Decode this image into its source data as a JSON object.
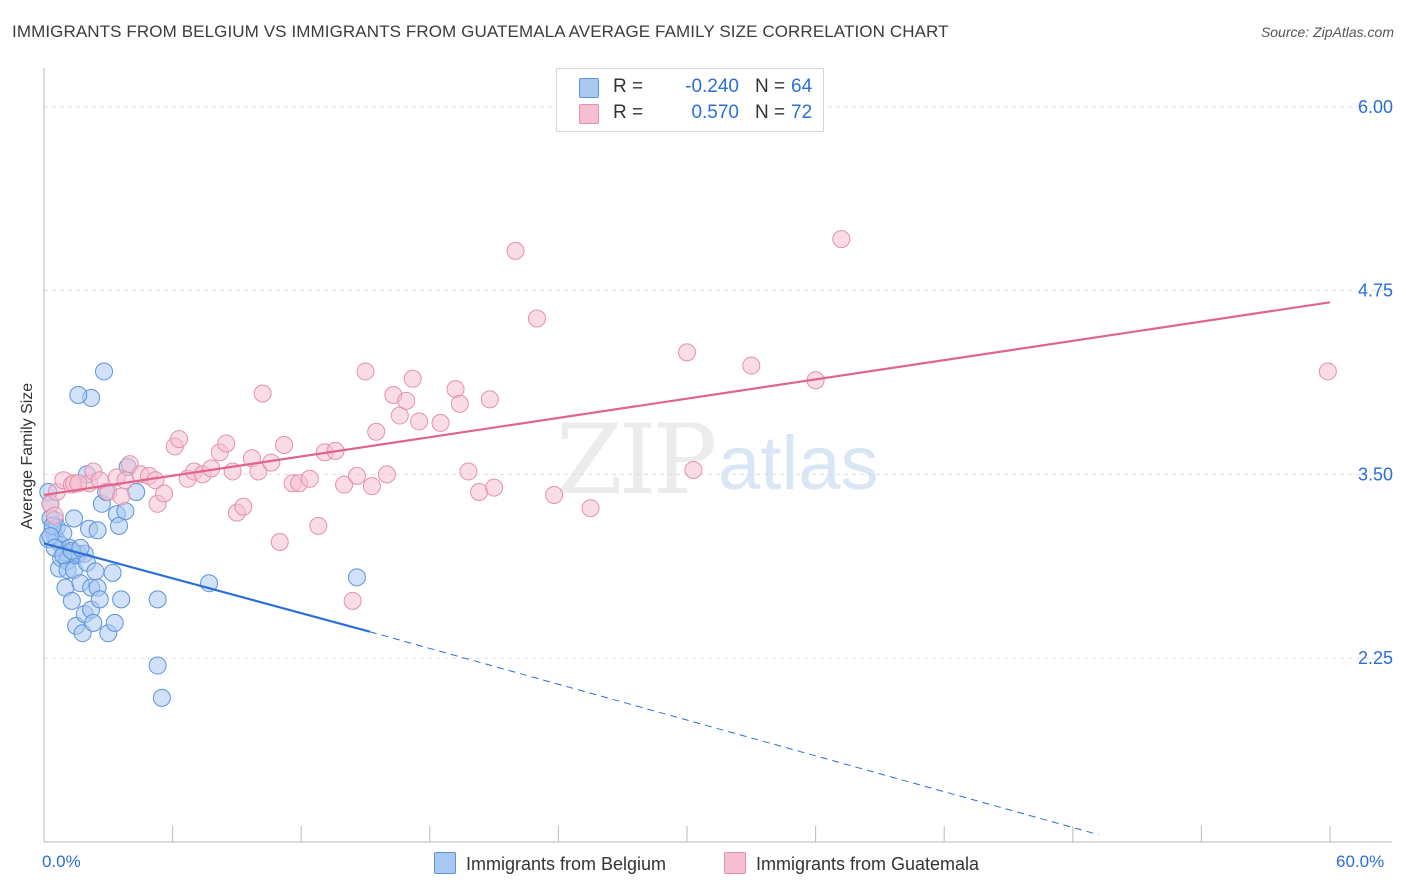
{
  "title": "IMMIGRANTS FROM BELGIUM VS IMMIGRANTS FROM GUATEMALA AVERAGE FAMILY SIZE CORRELATION CHART",
  "source": "Source: ZipAtlas.com",
  "watermark": {
    "zip": "ZIP",
    "atlas": "atlas"
  },
  "legend": {
    "rows": [
      {
        "r_label": "R =",
        "r_value": "-0.240",
        "n_label": "N =",
        "n_value": "64"
      },
      {
        "r_label": "R =",
        "r_value": "0.570",
        "n_label": "N =",
        "n_value": "72"
      }
    ]
  },
  "bottom_legend": {
    "belgium": "Immigrants from Belgium",
    "guatemala": "Immigrants from Guatemala"
  },
  "colors": {
    "belgium_fill": "#a9c9f2",
    "belgium_stroke": "#5b94d8",
    "belgium_line": "#2a6fd6",
    "guatemala_fill": "#f6bfd0",
    "guatemala_stroke": "#e391ad",
    "guatemala_line": "#e0648f",
    "tick_text": "#2a6fd6",
    "grid": "#dddddd"
  },
  "chart_data": {
    "type": "scatter",
    "title": "IMMIGRANTS FROM BELGIUM VS IMMIGRANTS FROM GUATEMALA AVERAGE FAMILY SIZE CORRELATION CHART",
    "xlabel": "",
    "ylabel": "Average Family Size",
    "xlim": [
      0,
      60
    ],
    "ylim": [
      1.0,
      6.25
    ],
    "x_tick_labels": [
      "0.0%",
      "60.0%"
    ],
    "y_ticks": [
      2.25,
      3.5,
      4.75,
      6.0
    ],
    "y_tick_labels": [
      "2.25",
      "3.50",
      "4.75",
      "6.00"
    ],
    "grid": true,
    "legend_position": "top-center",
    "series": [
      {
        "name": "Immigrants from Belgium",
        "r": -0.24,
        "n": 64,
        "trend": {
          "x0": 0.0,
          "y0": 3.03,
          "x1": 15.2,
          "y1": 2.43,
          "dashed_to_x": 49.2,
          "dashed_to_y": 1.05
        },
        "points": [
          [
            0.2,
            3.38
          ],
          [
            0.3,
            3.3
          ],
          [
            0.3,
            3.2
          ],
          [
            0.4,
            3.12
          ],
          [
            0.5,
            3.08
          ],
          [
            0.5,
            3.19
          ],
          [
            0.6,
            3.05
          ],
          [
            0.6,
            3.14
          ],
          [
            0.7,
            2.86
          ],
          [
            0.8,
            3.02
          ],
          [
            0.8,
            2.93
          ],
          [
            0.9,
            3.1
          ],
          [
            1.0,
            2.73
          ],
          [
            1.0,
            2.97
          ],
          [
            1.1,
            2.91
          ],
          [
            1.1,
            2.85
          ],
          [
            1.2,
            3.0
          ],
          [
            1.3,
            2.64
          ],
          [
            1.4,
            3.2
          ],
          [
            1.4,
            2.97
          ],
          [
            1.4,
            2.85
          ],
          [
            1.5,
            2.47
          ],
          [
            1.5,
            2.95
          ],
          [
            1.6,
            2.96
          ],
          [
            1.7,
            2.76
          ],
          [
            1.8,
            2.42
          ],
          [
            1.9,
            2.96
          ],
          [
            1.9,
            2.55
          ],
          [
            2.0,
            2.9
          ],
          [
            2.1,
            3.13
          ],
          [
            2.2,
            2.73
          ],
          [
            2.2,
            2.58
          ],
          [
            2.3,
            2.49
          ],
          [
            2.4,
            2.84
          ],
          [
            2.5,
            3.12
          ],
          [
            2.5,
            2.73
          ],
          [
            2.6,
            2.65
          ],
          [
            2.7,
            3.3
          ],
          [
            2.8,
            4.2
          ],
          [
            2.9,
            3.38
          ],
          [
            3.0,
            2.42
          ],
          [
            3.2,
            2.83
          ],
          [
            3.3,
            2.49
          ],
          [
            3.4,
            3.23
          ],
          [
            3.5,
            3.15
          ],
          [
            3.6,
            2.65
          ],
          [
            3.8,
            3.25
          ],
          [
            3.9,
            3.55
          ],
          [
            4.3,
            3.38
          ],
          [
            5.3,
            2.65
          ],
          [
            5.3,
            2.2
          ],
          [
            5.5,
            1.98
          ],
          [
            7.7,
            2.76
          ],
          [
            2.2,
            4.02
          ],
          [
            1.6,
            4.04
          ],
          [
            14.6,
            2.8
          ],
          [
            0.2,
            3.06
          ],
          [
            0.4,
            3.15
          ],
          [
            0.3,
            3.08
          ],
          [
            0.5,
            3.0
          ],
          [
            0.9,
            2.95
          ],
          [
            1.3,
            2.98
          ],
          [
            2.0,
            3.5
          ],
          [
            1.7,
            3.0
          ]
        ]
      },
      {
        "name": "Immigrants from Guatemala",
        "r": 0.57,
        "n": 72,
        "trend": {
          "x0": 0.0,
          "y0": 3.36,
          "x1": 60.0,
          "y1": 4.67
        },
        "points": [
          [
            0.3,
            3.3
          ],
          [
            0.5,
            3.22
          ],
          [
            0.6,
            3.38
          ],
          [
            0.9,
            3.46
          ],
          [
            1.3,
            3.43
          ],
          [
            1.4,
            3.44
          ],
          [
            2.1,
            3.44
          ],
          [
            2.3,
            3.52
          ],
          [
            2.6,
            3.46
          ],
          [
            3.0,
            3.38
          ],
          [
            3.4,
            3.48
          ],
          [
            3.6,
            3.35
          ],
          [
            3.8,
            3.46
          ],
          [
            4.0,
            3.57
          ],
          [
            4.5,
            3.5
          ],
          [
            4.9,
            3.49
          ],
          [
            5.2,
            3.46
          ],
          [
            5.3,
            3.3
          ],
          [
            5.6,
            3.37
          ],
          [
            6.1,
            3.69
          ],
          [
            6.3,
            3.74
          ],
          [
            6.7,
            3.47
          ],
          [
            7.0,
            3.52
          ],
          [
            7.4,
            3.5
          ],
          [
            7.8,
            3.54
          ],
          [
            8.2,
            3.65
          ],
          [
            8.5,
            3.71
          ],
          [
            9.0,
            3.24
          ],
          [
            9.3,
            3.28
          ],
          [
            9.7,
            3.61
          ],
          [
            10.0,
            3.52
          ],
          [
            10.2,
            4.05
          ],
          [
            10.6,
            3.58
          ],
          [
            11.0,
            3.04
          ],
          [
            11.2,
            3.7
          ],
          [
            11.6,
            3.44
          ],
          [
            11.9,
            3.44
          ],
          [
            12.4,
            3.47
          ],
          [
            12.8,
            3.15
          ],
          [
            13.1,
            3.65
          ],
          [
            13.6,
            3.66
          ],
          [
            14.0,
            3.43
          ],
          [
            14.4,
            2.64
          ],
          [
            14.6,
            3.49
          ],
          [
            15.0,
            4.2
          ],
          [
            15.3,
            3.42
          ],
          [
            15.5,
            3.79
          ],
          [
            16.0,
            3.5
          ],
          [
            16.3,
            4.04
          ],
          [
            16.6,
            3.9
          ],
          [
            16.9,
            4.0
          ],
          [
            17.2,
            4.15
          ],
          [
            17.5,
            3.86
          ],
          [
            18.5,
            3.85
          ],
          [
            19.2,
            4.08
          ],
          [
            19.4,
            3.98
          ],
          [
            19.8,
            3.52
          ],
          [
            20.3,
            3.38
          ],
          [
            20.8,
            4.01
          ],
          [
            21.0,
            3.41
          ],
          [
            22.0,
            5.02
          ],
          [
            23.0,
            4.56
          ],
          [
            23.8,
            3.36
          ],
          [
            25.5,
            3.27
          ],
          [
            30.0,
            4.33
          ],
          [
            30.3,
            3.53
          ],
          [
            33.0,
            4.24
          ],
          [
            36.0,
            4.14
          ],
          [
            37.2,
            5.1
          ],
          [
            59.9,
            4.2
          ],
          [
            1.6,
            3.44
          ],
          [
            8.8,
            3.52
          ]
        ]
      }
    ]
  }
}
